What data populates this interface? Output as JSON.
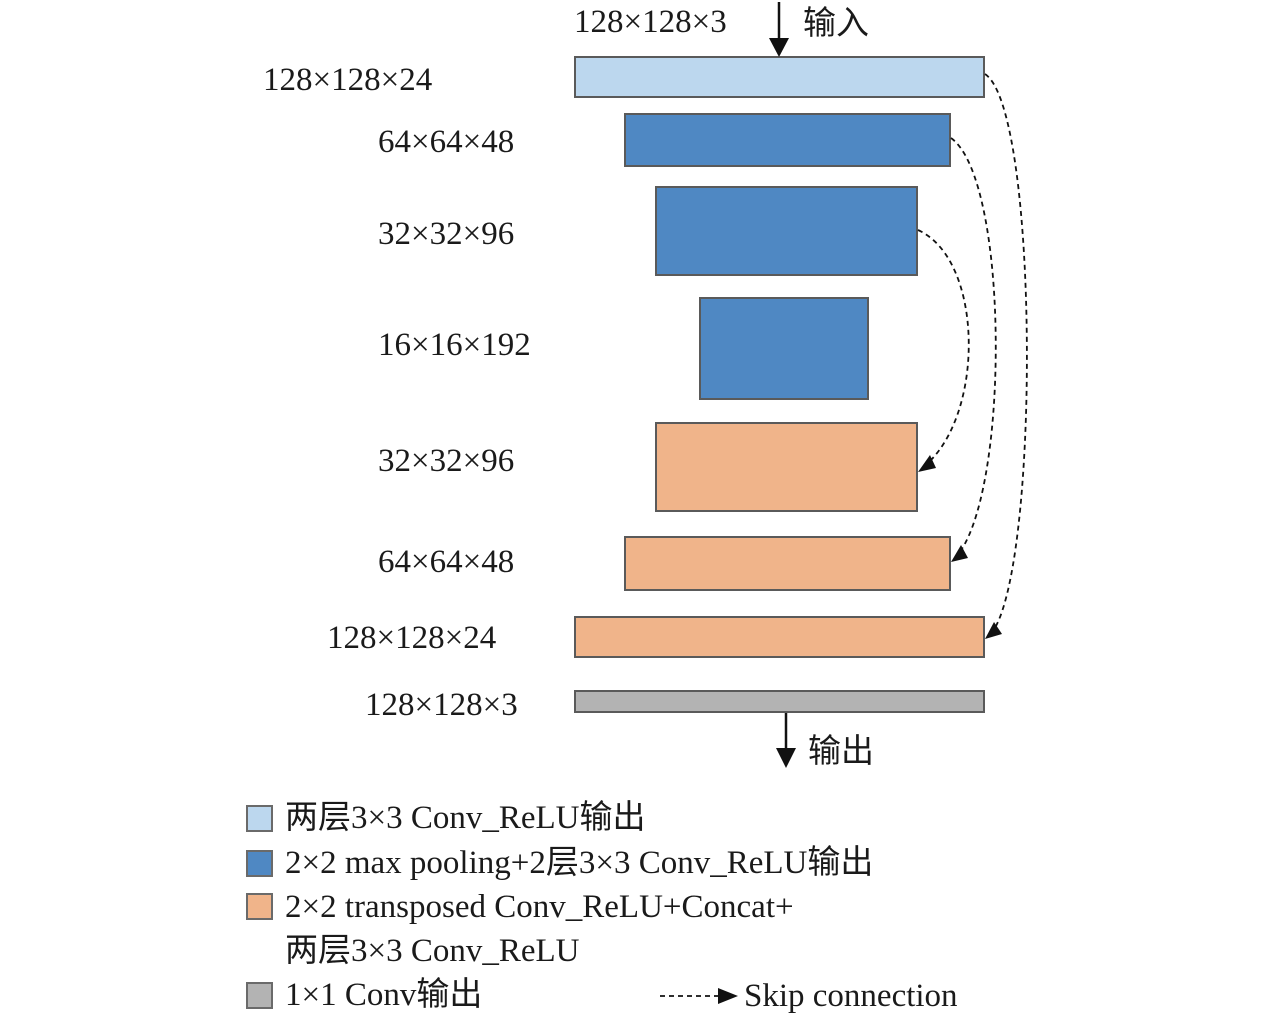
{
  "io": {
    "input_dims": "128×128×3",
    "input_label": "输入",
    "output_label": "输出"
  },
  "layers": [
    {
      "dims": "128×128×24",
      "kind": "conv_relu"
    },
    {
      "dims": "64×64×48",
      "kind": "pool_conv"
    },
    {
      "dims": "32×32×96",
      "kind": "pool_conv"
    },
    {
      "dims": "16×16×192",
      "kind": "pool_conv"
    },
    {
      "dims": "32×32×96",
      "kind": "transposed_concat"
    },
    {
      "dims": "64×64×48",
      "kind": "transposed_concat"
    },
    {
      "dims": "128×128×24",
      "kind": "transposed_concat"
    },
    {
      "dims": "128×128×3",
      "kind": "conv1x1"
    }
  ],
  "legend": {
    "item1": "两层3×3 Conv_ReLU输出",
    "item2": "2×2 max pooling+2层3×3 Conv_ReLU输出",
    "item3_line1": "2×2 transposed Conv_ReLU+Concat+",
    "item3_line2": "两层3×3 Conv_ReLU",
    "item4": "1×1 Conv输出",
    "skip": "Skip connection"
  },
  "colors": {
    "light_blue": "#bcd7ee",
    "blue": "#4f88c3",
    "orange": "#f0b48a",
    "gray": "#b3b3b3"
  }
}
